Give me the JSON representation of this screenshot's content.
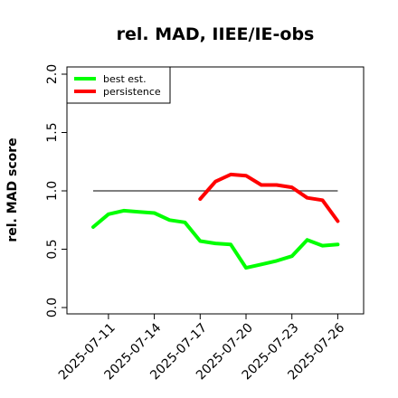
{
  "chart_data": {
    "type": "line",
    "title": "rel. MAD, IIEE/IE-obs",
    "xlabel": "",
    "ylabel": "rel. MAD score",
    "ylim": [
      0.0,
      2.0
    ],
    "y_ticks": [
      "0.0",
      "0.5",
      "1.0",
      "1.5",
      "2.0"
    ],
    "x": [
      "2025-07-10",
      "2025-07-11",
      "2025-07-12",
      "2025-07-13",
      "2025-07-14",
      "2025-07-15",
      "2025-07-16",
      "2025-07-17",
      "2025-07-18",
      "2025-07-19",
      "2025-07-20",
      "2025-07-21",
      "2025-07-22",
      "2025-07-23",
      "2025-07-24",
      "2025-07-25",
      "2025-07-26"
    ],
    "x_tick_labels": [
      "2025-07-11",
      "2025-07-14",
      "2025-07-17",
      "2025-07-20",
      "2025-07-23",
      "2025-07-26"
    ],
    "reference_line": 1.0,
    "series": [
      {
        "name": "best est.",
        "color": "#00ff00",
        "values": [
          0.69,
          0.8,
          0.83,
          0.82,
          0.81,
          0.75,
          0.73,
          0.57,
          0.55,
          0.54,
          0.34,
          0.37,
          0.4,
          0.44,
          0.58,
          0.53,
          0.54
        ]
      },
      {
        "name": "persistence",
        "color": "#ff0000",
        "values": [
          null,
          null,
          null,
          null,
          null,
          null,
          null,
          0.93,
          1.08,
          1.14,
          1.13,
          1.05,
          1.05,
          1.03,
          0.94,
          0.92,
          0.74
        ]
      }
    ],
    "legend_position": "top-left",
    "grid": false
  }
}
